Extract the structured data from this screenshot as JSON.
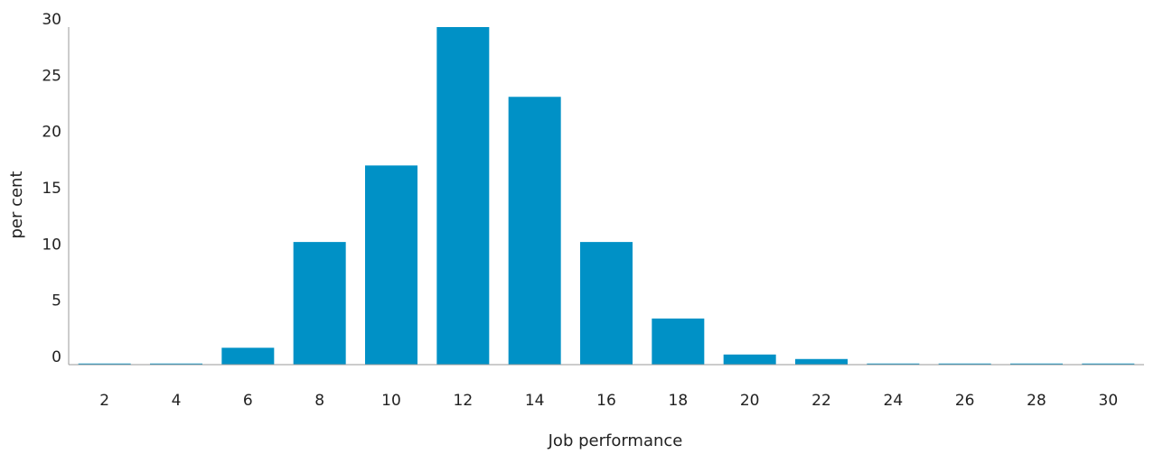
{
  "chart_data": {
    "type": "bar",
    "title": "",
    "xlabel": "Job performance",
    "ylabel": "per cent",
    "categories": [
      "2",
      "4",
      "6",
      "8",
      "10",
      "12",
      "14",
      "16",
      "18",
      "20",
      "22",
      "24",
      "26",
      "28",
      "30"
    ],
    "values": [
      0.1,
      0.1,
      1.5,
      10.9,
      17.7,
      30,
      23.8,
      10.9,
      4.1,
      0.9,
      0.5,
      0.1,
      0.1,
      0.1,
      0.1
    ],
    "ylim": [
      0,
      30
    ],
    "yticks": [
      0,
      5,
      10,
      15,
      20,
      25,
      30
    ],
    "grid": false,
    "colors": {
      "bar": "#0091c6",
      "axis": "#9a9a9a",
      "text": "#222222"
    }
  }
}
